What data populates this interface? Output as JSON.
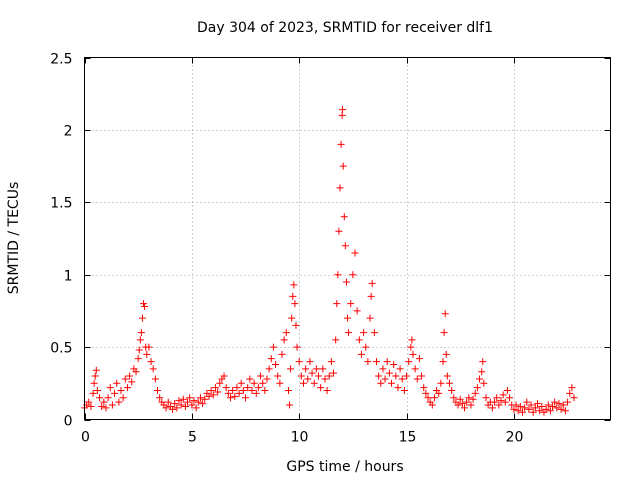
{
  "chart_data": {
    "type": "scatter",
    "title": "Day 304 of 2023, SRMTID for receiver dlf1",
    "xlabel": "GPS time / hours",
    "ylabel": "SRMTID / TECUs",
    "xlim": [
      0,
      24.5
    ],
    "ylim": [
      0,
      2.5
    ],
    "xticks": [
      0,
      5,
      10,
      15,
      20
    ],
    "xtick_labels": [
      "0",
      "5",
      "10",
      "15",
      "20"
    ],
    "yticks": [
      0,
      0.5,
      1,
      1.5,
      2,
      2.5
    ],
    "ytick_labels": [
      "0",
      "0.5",
      "1",
      "1.5",
      "2",
      "2.5"
    ],
    "grid": true,
    "marker": "+",
    "color": "#ff0000",
    "series": [
      {
        "name": "SRMTID",
        "points": [
          [
            0.0,
            0.08
          ],
          [
            0.1,
            0.1
          ],
          [
            0.2,
            0.12
          ],
          [
            0.3,
            0.09
          ],
          [
            0.4,
            0.18
          ],
          [
            0.45,
            0.25
          ],
          [
            0.5,
            0.3
          ],
          [
            0.55,
            0.34
          ],
          [
            0.6,
            0.2
          ],
          [
            0.7,
            0.15
          ],
          [
            0.8,
            0.09
          ],
          [
            0.9,
            0.12
          ],
          [
            1.0,
            0.08
          ],
          [
            1.1,
            0.15
          ],
          [
            1.2,
            0.22
          ],
          [
            1.3,
            0.1
          ],
          [
            1.4,
            0.18
          ],
          [
            1.5,
            0.25
          ],
          [
            1.6,
            0.12
          ],
          [
            1.7,
            0.2
          ],
          [
            1.8,
            0.15
          ],
          [
            1.9,
            0.28
          ],
          [
            2.0,
            0.22
          ],
          [
            2.1,
            0.3
          ],
          [
            2.2,
            0.26
          ],
          [
            2.3,
            0.35
          ],
          [
            2.4,
            0.33
          ],
          [
            2.5,
            0.42
          ],
          [
            2.55,
            0.48
          ],
          [
            2.6,
            0.55
          ],
          [
            2.65,
            0.6
          ],
          [
            2.7,
            0.7
          ],
          [
            2.75,
            0.8
          ],
          [
            2.8,
            0.78
          ],
          [
            2.85,
            0.5
          ],
          [
            2.9,
            0.45
          ],
          [
            3.0,
            0.5
          ],
          [
            3.1,
            0.4
          ],
          [
            3.2,
            0.35
          ],
          [
            3.3,
            0.28
          ],
          [
            3.4,
            0.2
          ],
          [
            3.5,
            0.15
          ],
          [
            3.6,
            0.12
          ],
          [
            3.7,
            0.1
          ],
          [
            3.8,
            0.08
          ],
          [
            3.9,
            0.12
          ],
          [
            4.0,
            0.09
          ],
          [
            4.1,
            0.07
          ],
          [
            4.2,
            0.11
          ],
          [
            4.3,
            0.08
          ],
          [
            4.4,
            0.13
          ],
          [
            4.5,
            0.1
          ],
          [
            4.6,
            0.14
          ],
          [
            4.7,
            0.09
          ],
          [
            4.8,
            0.12
          ],
          [
            4.9,
            0.15
          ],
          [
            5.0,
            0.1
          ],
          [
            5.1,
            0.13
          ],
          [
            5.2,
            0.08
          ],
          [
            5.3,
            0.12
          ],
          [
            5.4,
            0.15
          ],
          [
            5.5,
            0.11
          ],
          [
            5.6,
            0.14
          ],
          [
            5.7,
            0.18
          ],
          [
            5.8,
            0.16
          ],
          [
            5.9,
            0.2
          ],
          [
            6.0,
            0.17
          ],
          [
            6.1,
            0.22
          ],
          [
            6.2,
            0.19
          ],
          [
            6.3,
            0.25
          ],
          [
            6.4,
            0.28
          ],
          [
            6.5,
            0.3
          ],
          [
            6.6,
            0.22
          ],
          [
            6.7,
            0.18
          ],
          [
            6.8,
            0.15
          ],
          [
            6.9,
            0.2
          ],
          [
            7.0,
            0.16
          ],
          [
            7.1,
            0.22
          ],
          [
            7.2,
            0.18
          ],
          [
            7.3,
            0.25
          ],
          [
            7.4,
            0.2
          ],
          [
            7.5,
            0.15
          ],
          [
            7.6,
            0.22
          ],
          [
            7.7,
            0.28
          ],
          [
            7.8,
            0.2
          ],
          [
            7.9,
            0.25
          ],
          [
            8.0,
            0.18
          ],
          [
            8.1,
            0.22
          ],
          [
            8.2,
            0.3
          ],
          [
            8.3,
            0.25
          ],
          [
            8.4,
            0.2
          ],
          [
            8.5,
            0.28
          ],
          [
            8.6,
            0.35
          ],
          [
            8.7,
            0.42
          ],
          [
            8.8,
            0.5
          ],
          [
            8.9,
            0.38
          ],
          [
            9.0,
            0.3
          ],
          [
            9.1,
            0.25
          ],
          [
            9.2,
            0.45
          ],
          [
            9.3,
            0.55
          ],
          [
            9.4,
            0.6
          ],
          [
            9.5,
            0.2
          ],
          [
            9.55,
            0.1
          ],
          [
            9.6,
            0.35
          ],
          [
            9.65,
            0.7
          ],
          [
            9.7,
            0.85
          ],
          [
            9.75,
            0.93
          ],
          [
            9.8,
            0.8
          ],
          [
            9.85,
            0.65
          ],
          [
            9.9,
            0.5
          ],
          [
            10.0,
            0.4
          ],
          [
            10.1,
            0.3
          ],
          [
            10.2,
            0.25
          ],
          [
            10.3,
            0.35
          ],
          [
            10.4,
            0.28
          ],
          [
            10.5,
            0.4
          ],
          [
            10.6,
            0.32
          ],
          [
            10.7,
            0.25
          ],
          [
            10.8,
            0.35
          ],
          [
            10.9,
            0.3
          ],
          [
            11.0,
            0.22
          ],
          [
            11.1,
            0.35
          ],
          [
            11.2,
            0.28
          ],
          [
            11.3,
            0.2
          ],
          [
            11.4,
            0.3
          ],
          [
            11.5,
            0.4
          ],
          [
            11.6,
            0.32
          ],
          [
            11.7,
            0.55
          ],
          [
            11.75,
            0.8
          ],
          [
            11.8,
            1.0
          ],
          [
            11.85,
            1.3
          ],
          [
            11.9,
            1.6
          ],
          [
            11.95,
            1.9
          ],
          [
            12.0,
            2.1
          ],
          [
            12.02,
            2.14
          ],
          [
            12.05,
            1.75
          ],
          [
            12.1,
            1.4
          ],
          [
            12.15,
            1.2
          ],
          [
            12.2,
            0.95
          ],
          [
            12.25,
            0.7
          ],
          [
            12.3,
            0.6
          ],
          [
            12.4,
            0.8
          ],
          [
            12.5,
            1.0
          ],
          [
            12.6,
            1.15
          ],
          [
            12.7,
            0.75
          ],
          [
            12.8,
            0.55
          ],
          [
            12.9,
            0.45
          ],
          [
            13.0,
            0.6
          ],
          [
            13.1,
            0.5
          ],
          [
            13.2,
            0.4
          ],
          [
            13.3,
            0.7
          ],
          [
            13.35,
            0.85
          ],
          [
            13.4,
            0.94
          ],
          [
            13.5,
            0.6
          ],
          [
            13.6,
            0.4
          ],
          [
            13.7,
            0.3
          ],
          [
            13.8,
            0.25
          ],
          [
            13.9,
            0.35
          ],
          [
            14.0,
            0.28
          ],
          [
            14.1,
            0.4
          ],
          [
            14.2,
            0.32
          ],
          [
            14.3,
            0.25
          ],
          [
            14.4,
            0.38
          ],
          [
            14.5,
            0.3
          ],
          [
            14.6,
            0.22
          ],
          [
            14.7,
            0.35
          ],
          [
            14.8,
            0.28
          ],
          [
            14.9,
            0.2
          ],
          [
            15.0,
            0.3
          ],
          [
            15.1,
            0.4
          ],
          [
            15.2,
            0.5
          ],
          [
            15.25,
            0.55
          ],
          [
            15.3,
            0.45
          ],
          [
            15.4,
            0.35
          ],
          [
            15.5,
            0.28
          ],
          [
            15.6,
            0.42
          ],
          [
            15.7,
            0.3
          ],
          [
            15.8,
            0.22
          ],
          [
            15.9,
            0.18
          ],
          [
            16.0,
            0.15
          ],
          [
            16.1,
            0.12
          ],
          [
            16.2,
            0.1
          ],
          [
            16.3,
            0.15
          ],
          [
            16.4,
            0.2
          ],
          [
            16.5,
            0.18
          ],
          [
            16.6,
            0.25
          ],
          [
            16.7,
            0.4
          ],
          [
            16.75,
            0.6
          ],
          [
            16.8,
            0.73
          ],
          [
            16.85,
            0.45
          ],
          [
            16.9,
            0.3
          ],
          [
            17.0,
            0.25
          ],
          [
            17.1,
            0.2
          ],
          [
            17.2,
            0.15
          ],
          [
            17.3,
            0.12
          ],
          [
            17.4,
            0.1
          ],
          [
            17.5,
            0.14
          ],
          [
            17.6,
            0.11
          ],
          [
            17.7,
            0.08
          ],
          [
            17.8,
            0.12
          ],
          [
            17.9,
            0.15
          ],
          [
            18.0,
            0.1
          ],
          [
            18.1,
            0.14
          ],
          [
            18.2,
            0.18
          ],
          [
            18.3,
            0.22
          ],
          [
            18.4,
            0.28
          ],
          [
            18.5,
            0.33
          ],
          [
            18.55,
            0.4
          ],
          [
            18.6,
            0.25
          ],
          [
            18.7,
            0.15
          ],
          [
            18.8,
            0.1
          ],
          [
            18.9,
            0.12
          ],
          [
            19.0,
            0.08
          ],
          [
            19.1,
            0.12
          ],
          [
            19.2,
            0.15
          ],
          [
            19.3,
            0.1
          ],
          [
            19.4,
            0.13
          ],
          [
            19.5,
            0.17
          ],
          [
            19.6,
            0.12
          ],
          [
            19.7,
            0.2
          ],
          [
            19.8,
            0.15
          ],
          [
            19.9,
            0.1
          ],
          [
            20.0,
            0.07
          ],
          [
            20.1,
            0.1
          ],
          [
            20.2,
            0.06
          ],
          [
            20.3,
            0.09
          ],
          [
            20.4,
            0.05
          ],
          [
            20.5,
            0.08
          ],
          [
            20.6,
            0.12
          ],
          [
            20.7,
            0.07
          ],
          [
            20.8,
            0.1
          ],
          [
            20.9,
            0.05
          ],
          [
            21.0,
            0.08
          ],
          [
            21.1,
            0.11
          ],
          [
            21.2,
            0.06
          ],
          [
            21.3,
            0.09
          ],
          [
            21.4,
            0.05
          ],
          [
            21.5,
            0.07
          ],
          [
            21.6,
            0.1
          ],
          [
            21.7,
            0.06
          ],
          [
            21.8,
            0.09
          ],
          [
            21.9,
            0.12
          ],
          [
            22.0,
            0.08
          ],
          [
            22.1,
            0.11
          ],
          [
            22.2,
            0.07
          ],
          [
            22.3,
            0.1
          ],
          [
            22.4,
            0.06
          ],
          [
            22.5,
            0.12
          ],
          [
            22.6,
            0.18
          ],
          [
            22.7,
            0.22
          ],
          [
            22.8,
            0.15
          ]
        ]
      }
    ]
  }
}
